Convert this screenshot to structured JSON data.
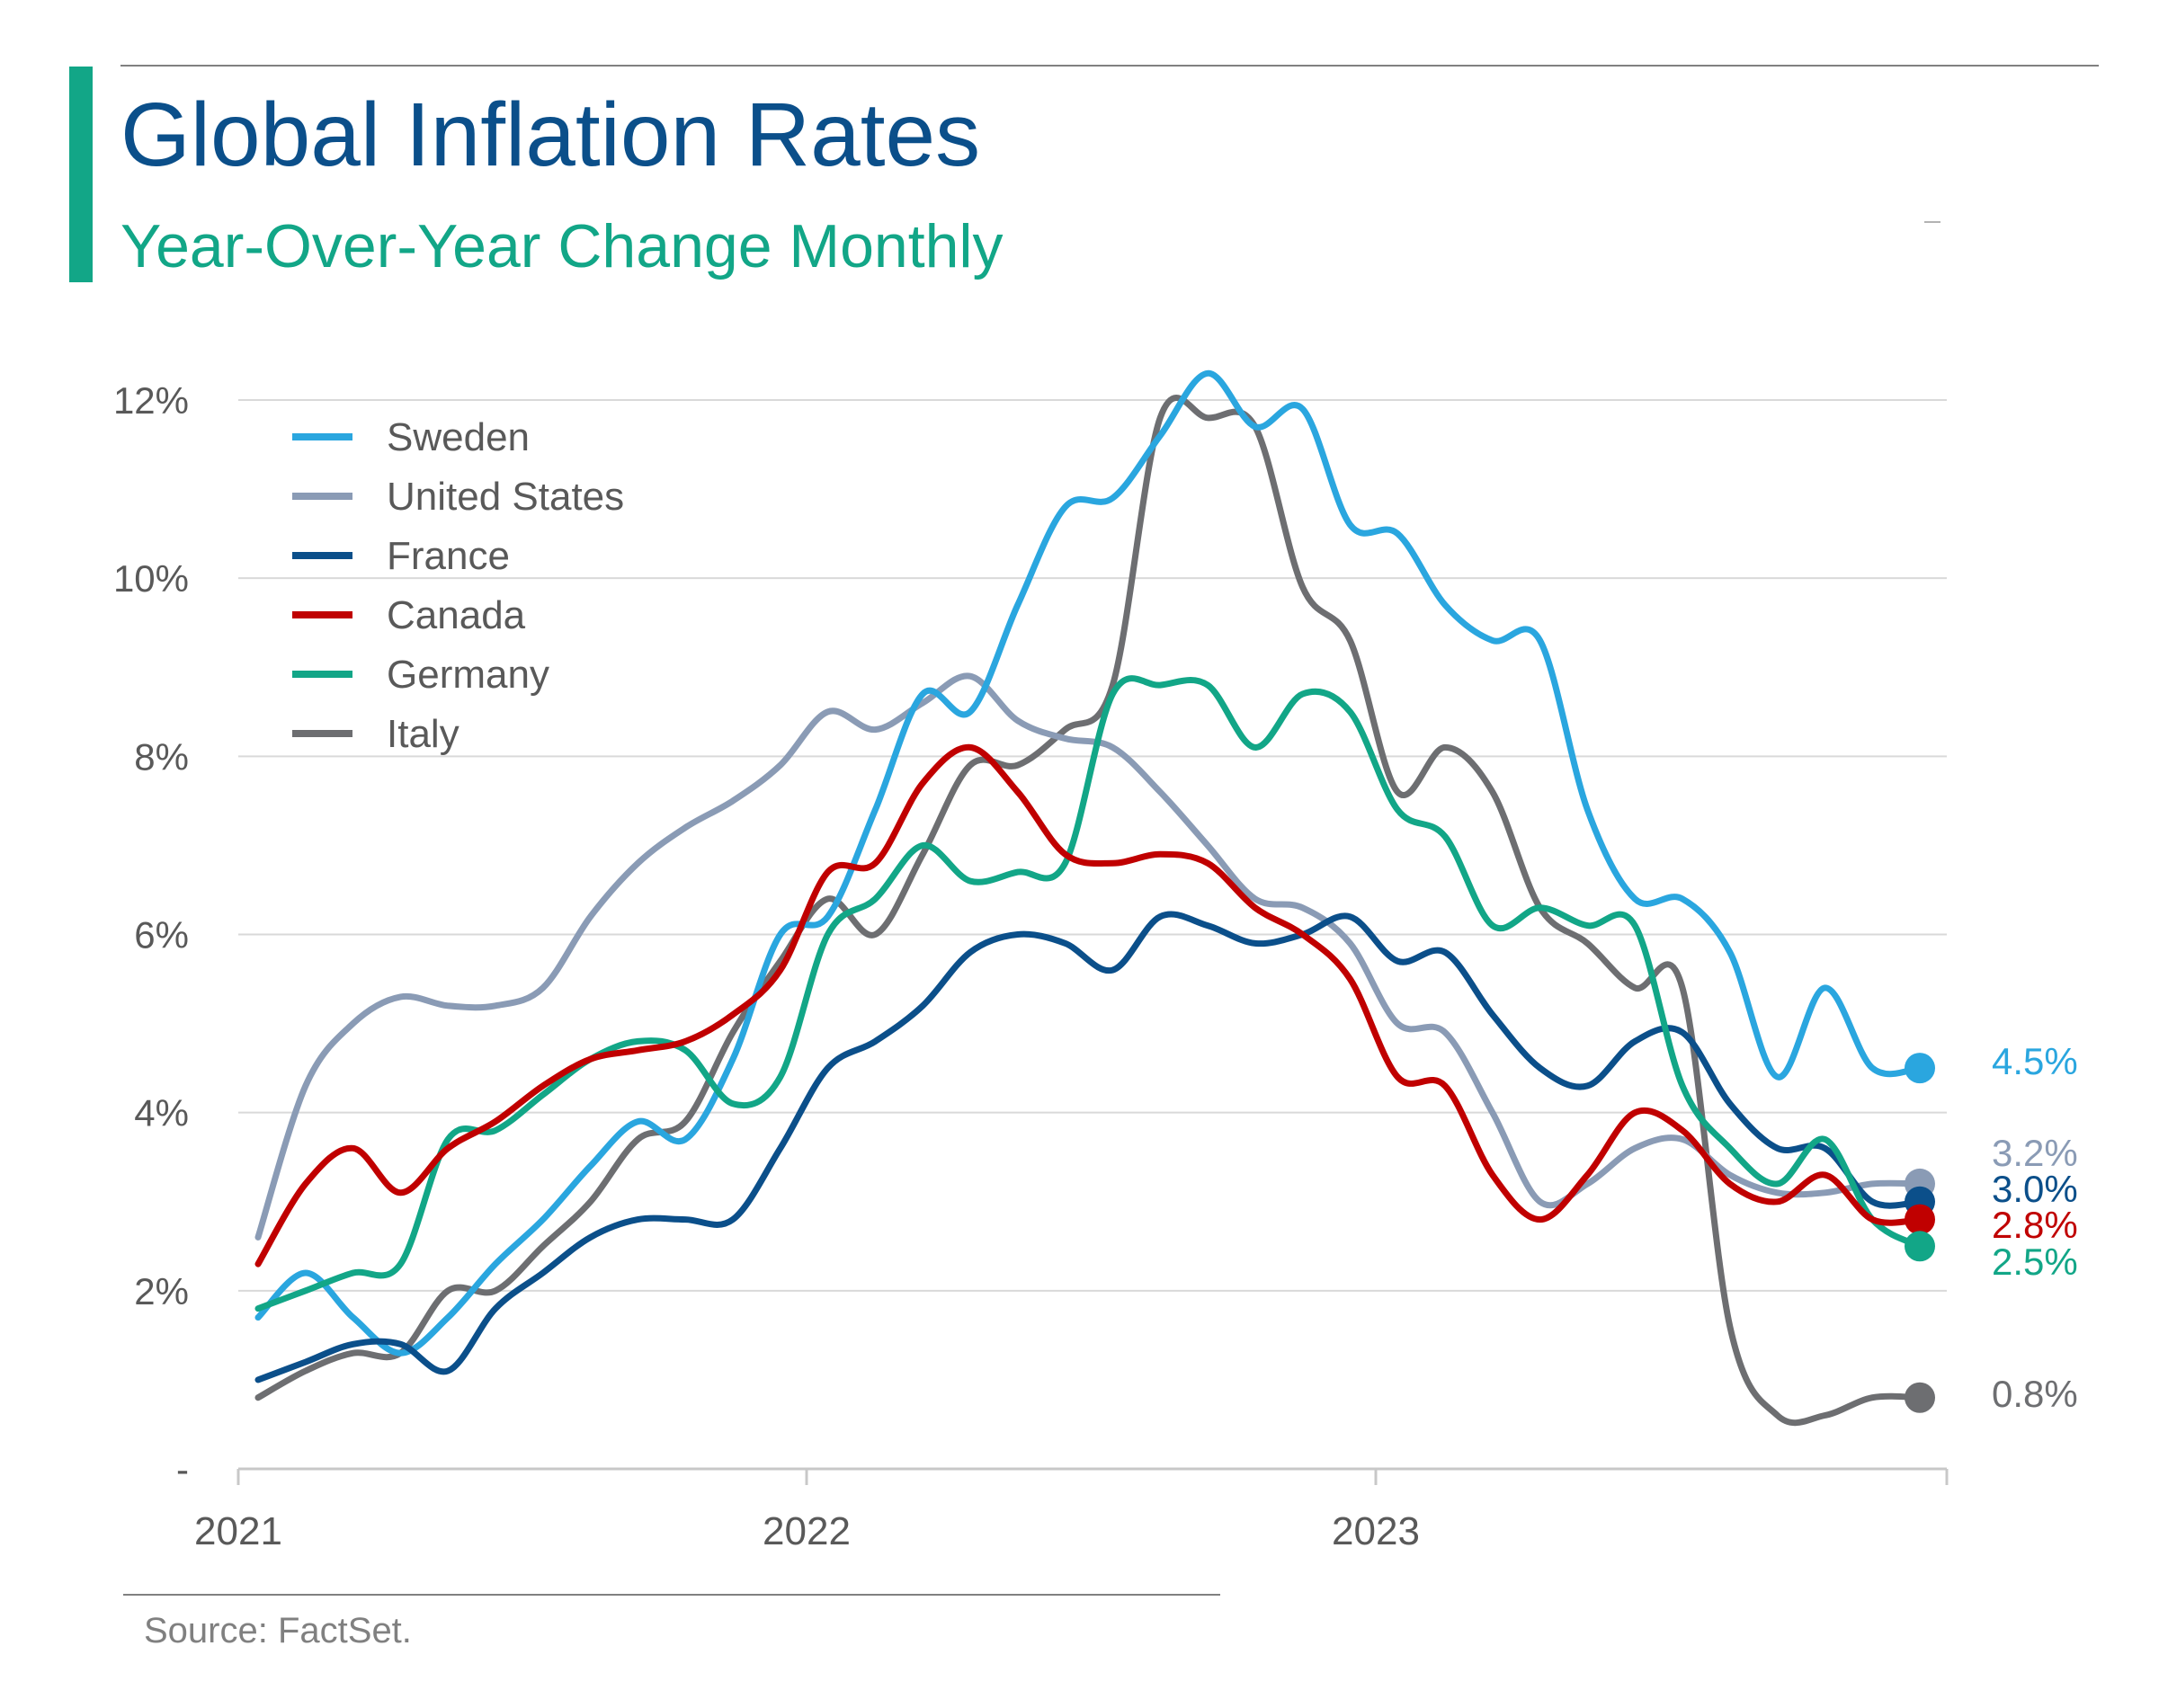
{
  "header": {
    "title": "Global Inflation Rates",
    "subtitle": "Year-Over-Year Change Monthly"
  },
  "footer": {
    "source": "Source: FactSet."
  },
  "chart_data": {
    "type": "line",
    "title": "Global Inflation Rates",
    "subtitle": "Year-Over-Year Change Monthly",
    "xlabel": "",
    "ylabel": "",
    "x_ticks": [
      "2021",
      "2022",
      "2023"
    ],
    "y_ticks": [
      "-",
      "2%",
      "4%",
      "6%",
      "8%",
      "10%",
      "12%"
    ],
    "ylim": [
      0,
      12
    ],
    "grid": "horizontal",
    "legend_position": "top-left",
    "x": [
      "2021-01",
      "2021-02",
      "2021-03",
      "2021-04",
      "2021-05",
      "2021-06",
      "2021-07",
      "2021-08",
      "2021-09",
      "2021-10",
      "2021-11",
      "2021-12",
      "2022-01",
      "2022-02",
      "2022-03",
      "2022-04",
      "2022-05",
      "2022-06",
      "2022-07",
      "2022-08",
      "2022-09",
      "2022-10",
      "2022-11",
      "2022-12",
      "2023-01",
      "2023-02",
      "2023-03",
      "2023-04",
      "2023-05",
      "2023-06",
      "2023-07",
      "2023-08",
      "2023-09",
      "2023-10",
      "2023-11",
      "2023-12"
    ],
    "series": [
      {
        "name": "Sweden",
        "color": "#2aa6df",
        "end_label": "4.5%",
        "values": [
          1.7,
          2.2,
          1.7,
          1.3,
          1.7,
          2.3,
          2.8,
          3.4,
          3.9,
          3.7,
          4.6,
          6.0,
          6.2,
          7.4,
          8.7,
          8.5,
          9.7,
          10.8,
          10.9,
          11.6,
          12.3,
          11.7,
          11.9,
          10.6,
          10.5,
          9.7,
          9.3,
          9.3,
          7.4,
          6.4,
          6.4,
          5.8,
          4.4,
          5.4,
          4.5,
          4.5
        ]
      },
      {
        "name": "United States",
        "color": "#8a9bb5",
        "end_label": "3.2%",
        "values": [
          2.6,
          4.3,
          5.0,
          5.3,
          5.2,
          5.2,
          5.4,
          6.2,
          6.8,
          7.2,
          7.5,
          7.9,
          8.5,
          8.3,
          8.6,
          8.9,
          8.4,
          8.2,
          8.1,
          7.6,
          7.0,
          6.4,
          6.3,
          5.9,
          5.0,
          4.9,
          4.0,
          3.0,
          3.2,
          3.6,
          3.7,
          3.3,
          3.1,
          3.1,
          3.2,
          3.2
        ]
      },
      {
        "name": "France",
        "color": "#0b4f8a",
        "end_label": "3.0%",
        "values": [
          1.0,
          1.2,
          1.4,
          1.4,
          1.1,
          1.8,
          2.2,
          2.6,
          2.8,
          2.8,
          2.8,
          3.6,
          4.5,
          4.8,
          5.2,
          5.8,
          6.0,
          5.9,
          5.6,
          6.2,
          6.1,
          5.9,
          6.0,
          6.2,
          5.7,
          5.8,
          5.1,
          4.5,
          4.3,
          4.8,
          4.9,
          4.1,
          3.6,
          3.6,
          3.0,
          3.0
        ]
      },
      {
        "name": "Canada",
        "color": "#c00000",
        "end_label": "2.8%",
        "values": [
          2.3,
          3.2,
          3.6,
          3.1,
          3.6,
          3.9,
          4.3,
          4.6,
          4.7,
          4.8,
          5.1,
          5.6,
          6.7,
          6.8,
          7.7,
          8.1,
          7.6,
          6.9,
          6.8,
          6.9,
          6.8,
          6.3,
          6.0,
          5.5,
          4.4,
          4.3,
          3.3,
          2.8,
          3.3,
          4.0,
          3.8,
          3.2,
          3.0,
          3.3,
          2.8,
          2.8
        ]
      },
      {
        "name": "Germany",
        "color": "#12a687",
        "end_label": "2.5%",
        "values": [
          1.8,
          2.0,
          2.2,
          2.3,
          3.7,
          3.8,
          4.2,
          4.6,
          4.8,
          4.7,
          4.1,
          4.4,
          6.0,
          6.4,
          7.0,
          6.6,
          6.7,
          6.8,
          8.7,
          8.8,
          8.8,
          8.1,
          8.7,
          8.5,
          7.4,
          7.1,
          6.1,
          6.3,
          6.1,
          6.1,
          4.3,
          3.6,
          3.2,
          3.7,
          2.8,
          2.5
        ]
      },
      {
        "name": "Italy",
        "color": "#6d6e71",
        "end_label": "0.8%",
        "values": [
          0.8,
          1.1,
          1.3,
          1.3,
          2.0,
          2.0,
          2.5,
          3.0,
          3.7,
          3.9,
          4.9,
          5.7,
          6.4,
          6.0,
          6.9,
          7.9,
          7.9,
          8.3,
          8.8,
          11.8,
          11.8,
          11.7,
          9.9,
          9.3,
          7.6,
          8.1,
          7.6,
          6.3,
          5.9,
          5.4,
          5.4,
          1.6,
          0.6,
          0.6,
          0.8,
          0.8
        ]
      }
    ]
  }
}
